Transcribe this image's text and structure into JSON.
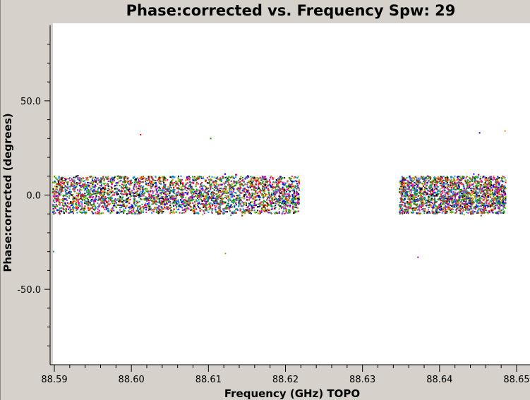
{
  "chart_data": {
    "type": "scatter",
    "title": "Phase:corrected vs. Frequency Spw: 29",
    "xlabel": "Frequency (GHz) TOPO",
    "ylabel": "Phase:corrected (degrees)",
    "xlim": [
      88.59,
      88.65
    ],
    "ylim": [
      -90,
      90
    ],
    "x_ticks": [
      "88.59",
      "88.60",
      "88.61",
      "88.62",
      "88.63",
      "88.64",
      "88.65"
    ],
    "x_tick_values": [
      88.59,
      88.6,
      88.61,
      88.62,
      88.63,
      88.64,
      88.65
    ],
    "y_ticks": [
      "50.0",
      "0.0",
      "-50.0"
    ],
    "y_tick_values": [
      50,
      0,
      -50
    ],
    "grid": false,
    "legend": "none",
    "series_colors": [
      "#ff0000",
      "#00aa00",
      "#0000ff",
      "#ff8c00",
      "#c000c0",
      "#008b8b",
      "#7fbf00",
      "#8b4513",
      "#ff1493",
      "#228b22",
      "#1e90ff",
      "#000000"
    ],
    "x_ranges_with_data": [
      [
        88.5898,
        88.6218
      ],
      [
        88.6348,
        88.6486
      ]
    ],
    "y_core_band": [
      -10,
      10
    ],
    "y_spread": [
      -30,
      30
    ],
    "outliers": [
      {
        "x": 88.6012,
        "y": 32
      },
      {
        "x": 88.6103,
        "y": 30
      },
      {
        "x": 88.6452,
        "y": 33
      },
      {
        "x": 88.6485,
        "y": 34
      },
      {
        "x": 88.6372,
        "y": -33
      },
      {
        "x": 88.5899,
        "y": -30
      },
      {
        "x": 88.6122,
        "y": -31
      }
    ]
  }
}
